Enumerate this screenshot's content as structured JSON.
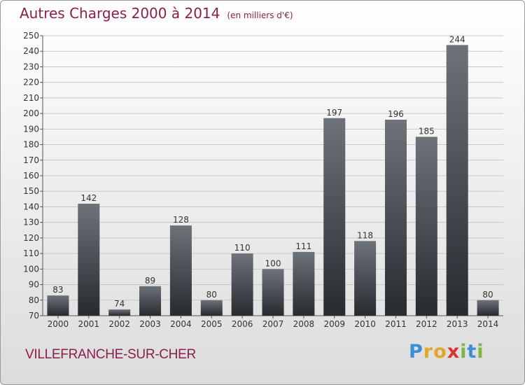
{
  "title": "Autres Charges 2000 à 2014",
  "subtitle": "(en milliers d'€)",
  "location": "VILLEFRANCHE-SUR-CHER",
  "brand": {
    "letters": [
      "P",
      "r",
      "o",
      "x",
      "i",
      "t",
      "i"
    ],
    "colors": [
      "#3b8fd6",
      "#e0a72a",
      "#e0a72a",
      "#d9342b",
      "#7ab648",
      "#3b8fd6",
      "#7ab648"
    ]
  },
  "colors": {
    "title": "#8a1f4c",
    "bar_top": "#6d7379",
    "bar_bottom": "#262b30",
    "grid": "#c8c8c8",
    "axis": "#555555"
  },
  "chart_data": {
    "type": "bar",
    "categories": [
      "2000",
      "2001",
      "2002",
      "2003",
      "2004",
      "2005",
      "2006",
      "2007",
      "2008",
      "2009",
      "2010",
      "2011",
      "2012",
      "2013",
      "2014"
    ],
    "values": [
      83,
      142,
      74,
      89,
      128,
      80,
      110,
      100,
      111,
      197,
      118,
      196,
      185,
      244,
      80
    ],
    "ylim": [
      70,
      250
    ],
    "yticks": [
      70,
      80,
      90,
      100,
      110,
      120,
      130,
      140,
      150,
      160,
      170,
      180,
      190,
      200,
      210,
      220,
      230,
      240,
      250
    ],
    "grid": true,
    "data_labels": true
  }
}
